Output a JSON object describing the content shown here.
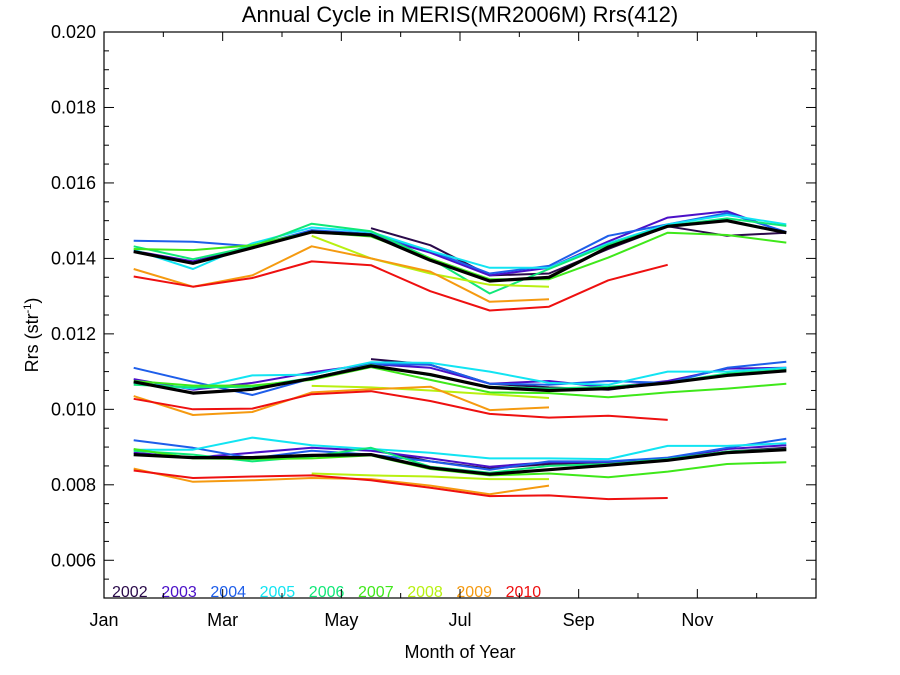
{
  "chart_data": {
    "type": "line",
    "title": "Annual Cycle in MERIS(MR2006M) Rrs(412)",
    "xlabel": "Month of Year",
    "ylabel": "Rrs (str",
    "ylabel_sup": "-1",
    "ylabel_end": ")",
    "xlim": [
      1,
      13
    ],
    "ylim": [
      0.005,
      0.02
    ],
    "x_ticks": [
      {
        "label": "Jan",
        "value": 1
      },
      {
        "label": "Mar",
        "value": 3
      },
      {
        "label": "May",
        "value": 5
      },
      {
        "label": "Jul",
        "value": 7
      },
      {
        "label": "Sep",
        "value": 9
      },
      {
        "label": "Nov",
        "value": 11
      }
    ],
    "y_ticks": [
      {
        "label": "0.006",
        "value": 0.006
      },
      {
        "label": "0.008",
        "value": 0.008
      },
      {
        "label": "0.010",
        "value": 0.01
      },
      {
        "label": "0.012",
        "value": 0.012
      },
      {
        "label": "0.014",
        "value": 0.014
      },
      {
        "label": "0.016",
        "value": 0.016
      },
      {
        "label": "0.018",
        "value": 0.018
      },
      {
        "label": "0.020",
        "value": 0.02
      }
    ],
    "grid": false,
    "legend_position": "bottom-left",
    "legend": [
      {
        "name": "2002",
        "color": "#2a0a4a"
      },
      {
        "name": "2003",
        "color": "#4b10c8"
      },
      {
        "name": "2004",
        "color": "#1e5eea"
      },
      {
        "name": "2005",
        "color": "#12e4f2"
      },
      {
        "name": "2006",
        "color": "#10e878"
      },
      {
        "name": "2007",
        "color": "#3fe81a"
      },
      {
        "name": "2008",
        "color": "#b8f010"
      },
      {
        "name": "2009",
        "color": "#f59a10"
      },
      {
        "name": "2010",
        "color": "#ee1010"
      }
    ],
    "climatology_color": "#000000",
    "groups": [
      {
        "name": "upper",
        "climatology": {
          "x": [
            1.5,
            2.5,
            3.5,
            4.5,
            5.5,
            6.5,
            7.5,
            8.5,
            9.5,
            10.5,
            11.5,
            12.5
          ],
          "y": [
            0.01418,
            0.01387,
            0.01428,
            0.0147,
            0.01462,
            0.01395,
            0.0134,
            0.0135,
            0.0143,
            0.01485,
            0.015,
            0.01468
          ]
        },
        "series": [
          {
            "name": "2002",
            "x": [
              5.5,
              6.5,
              7.5,
              8.5,
              9.5,
              10.5,
              11.5,
              12.5
            ],
            "y": [
              0.0148,
              0.01435,
              0.01355,
              0.0136,
              0.01425,
              0.01485,
              0.0146,
              0.01468
            ]
          },
          {
            "name": "2003",
            "x": [
              1.5,
              2.5,
              3.5,
              4.5,
              5.5,
              6.5,
              7.5,
              8.5,
              9.5,
              10.5,
              11.5,
              12.5
            ],
            "y": [
              0.0142,
              0.01392,
              0.0143,
              0.0147,
              0.0146,
              0.01415,
              0.01355,
              0.01375,
              0.01445,
              0.01508,
              0.01525,
              0.01468
            ]
          },
          {
            "name": "2004",
            "x": [
              1.5,
              2.5,
              3.5,
              4.5,
              5.5,
              6.5,
              7.5,
              8.5,
              9.5,
              10.5,
              11.5,
              12.5
            ],
            "y": [
              0.01447,
              0.01444,
              0.01432,
              0.01475,
              0.01465,
              0.0142,
              0.0136,
              0.0138,
              0.0146,
              0.0149,
              0.0152,
              0.0147
            ]
          },
          {
            "name": "2005",
            "x": [
              1.5,
              2.5,
              3.5,
              4.5,
              5.5,
              6.5,
              7.5,
              8.5,
              9.5,
              10.5,
              11.5,
              12.5
            ],
            "y": [
              0.01423,
              0.01372,
              0.0144,
              0.01482,
              0.0147,
              0.0142,
              0.01375,
              0.01375,
              0.0144,
              0.0149,
              0.01515,
              0.0149
            ]
          },
          {
            "name": "2006",
            "x": [
              1.5,
              2.5,
              3.5,
              4.5,
              5.5,
              6.5,
              7.5,
              8.5,
              9.5,
              10.5,
              11.5,
              12.5
            ],
            "y": [
              0.01432,
              0.01398,
              0.01432,
              0.01492,
              0.01472,
              0.014,
              0.01307,
              0.01372,
              0.01436,
              0.01486,
              0.01506,
              0.01486
            ]
          },
          {
            "name": "2007",
            "x": [
              1.5,
              2.5,
              3.5,
              4.5,
              5.5,
              6.5,
              7.5,
              8.5,
              9.5,
              10.5,
              11.5,
              12.5
            ],
            "y": [
              0.01425,
              0.01422,
              0.01435,
              0.0147,
              0.01458,
              0.014,
              0.01345,
              0.01345,
              0.01402,
              0.01468,
              0.01462,
              0.01442
            ]
          },
          {
            "name": "2008",
            "x": [
              4.5,
              5.5,
              6.5,
              7.5,
              8.5
            ],
            "y": [
              0.0146,
              0.014,
              0.0136,
              0.0133,
              0.01325
            ]
          },
          {
            "name": "2009",
            "x": [
              1.5,
              2.5,
              3.5,
              4.5,
              5.5,
              6.5,
              7.5,
              8.5
            ],
            "y": [
              0.01372,
              0.01325,
              0.01355,
              0.01432,
              0.014,
              0.01365,
              0.01285,
              0.01292
            ]
          },
          {
            "name": "2010",
            "x": [
              1.5,
              2.5,
              3.5,
              4.5,
              5.5,
              6.5,
              7.5,
              8.5,
              9.5,
              10.5
            ],
            "y": [
              0.01352,
              0.01325,
              0.01348,
              0.01392,
              0.01382,
              0.01313,
              0.01262,
              0.01272,
              0.01342,
              0.01383
            ]
          }
        ]
      },
      {
        "name": "middle",
        "climatology": {
          "x": [
            1.5,
            2.5,
            3.5,
            4.5,
            5.5,
            6.5,
            7.5,
            8.5,
            9.5,
            10.5,
            11.5,
            12.5
          ],
          "y": [
            0.01073,
            0.01043,
            0.01053,
            0.01082,
            0.01115,
            0.01092,
            0.01058,
            0.0105,
            0.01055,
            0.0107,
            0.0109,
            0.01102
          ]
        },
        "series": [
          {
            "name": "2002",
            "x": [
              5.5,
              6.5,
              7.5,
              8.5,
              9.5,
              10.5,
              11.5,
              12.5
            ],
            "y": [
              0.01133,
              0.01118,
              0.01068,
              0.01058,
              0.01052,
              0.01072,
              0.0109,
              0.01105
            ]
          },
          {
            "name": "2003",
            "x": [
              1.5,
              2.5,
              3.5,
              4.5,
              5.5,
              6.5,
              7.5,
              8.5,
              9.5,
              10.5,
              11.5,
              12.5
            ],
            "y": [
              0.0108,
              0.01052,
              0.0107,
              0.01098,
              0.0112,
              0.0111,
              0.01068,
              0.01075,
              0.01058,
              0.01075,
              0.01108,
              0.0111
            ]
          },
          {
            "name": "2004",
            "x": [
              1.5,
              2.5,
              3.5,
              4.5,
              5.5,
              6.5,
              7.5,
              8.5,
              9.5,
              10.5,
              11.5,
              12.5
            ],
            "y": [
              0.0111,
              0.01073,
              0.01038,
              0.01082,
              0.0112,
              0.01118,
              0.01068,
              0.01065,
              0.01075,
              0.0107,
              0.0111,
              0.01126
            ]
          },
          {
            "name": "2005",
            "x": [
              1.5,
              2.5,
              3.5,
              4.5,
              5.5,
              6.5,
              7.5,
              8.5,
              9.5,
              10.5,
              11.5,
              12.5
            ],
            "y": [
              0.0107,
              0.01055,
              0.0109,
              0.01092,
              0.01125,
              0.01123,
              0.011,
              0.0107,
              0.01065,
              0.011,
              0.011,
              0.0111
            ]
          },
          {
            "name": "2006",
            "x": [
              1.5,
              2.5,
              3.5,
              4.5,
              5.5,
              6.5,
              7.5,
              8.5,
              9.5,
              10.5,
              11.5,
              12.5
            ],
            "y": [
              0.01065,
              0.01058,
              0.0106,
              0.01083,
              0.01118,
              0.0109,
              0.0106,
              0.01055,
              0.0106,
              0.0107,
              0.01095,
              0.01105
            ]
          },
          {
            "name": "2007",
            "x": [
              1.5,
              2.5,
              3.5,
              4.5,
              5.5,
              6.5,
              7.5,
              8.5,
              9.5,
              10.5,
              11.5,
              12.5
            ],
            "y": [
              0.01075,
              0.01063,
              0.01063,
              0.01078,
              0.01112,
              0.01078,
              0.01045,
              0.01043,
              0.01032,
              0.01045,
              0.01055,
              0.01068
            ]
          },
          {
            "name": "2008",
            "x": [
              4.5,
              5.5,
              6.5,
              7.5,
              8.5
            ],
            "y": [
              0.01062,
              0.01058,
              0.0105,
              0.0104,
              0.0103
            ]
          },
          {
            "name": "2009",
            "x": [
              1.5,
              2.5,
              3.5,
              4.5,
              5.5,
              6.5,
              7.5,
              8.5
            ],
            "y": [
              0.01035,
              0.00985,
              0.00993,
              0.01045,
              0.01053,
              0.0106,
              0.00998,
              0.01005
            ]
          },
          {
            "name": "2010",
            "x": [
              1.5,
              2.5,
              3.5,
              4.5,
              5.5,
              6.5,
              7.5,
              8.5,
              9.5,
              10.5
            ],
            "y": [
              0.01028,
              0.01,
              0.01002,
              0.0104,
              0.01048,
              0.01022,
              0.00988,
              0.00978,
              0.00983,
              0.00972
            ]
          }
        ]
      },
      {
        "name": "lower",
        "climatology": {
          "x": [
            1.5,
            2.5,
            3.5,
            4.5,
            5.5,
            6.5,
            7.5,
            8.5,
            9.5,
            10.5,
            11.5,
            12.5
          ],
          "y": [
            0.0088,
            0.00872,
            0.00872,
            0.00878,
            0.0088,
            0.00845,
            0.00828,
            0.0084,
            0.00852,
            0.00865,
            0.00885,
            0.00893
          ]
        },
        "series": [
          {
            "name": "2002",
            "x": [
              5.5,
              6.5,
              7.5,
              8.5,
              9.5,
              10.5,
              11.5,
              12.5
            ],
            "y": [
              0.00893,
              0.00862,
              0.00843,
              0.00855,
              0.0086,
              0.0087,
              0.00888,
              0.00898
            ]
          },
          {
            "name": "2003",
            "x": [
              1.5,
              2.5,
              3.5,
              4.5,
              5.5,
              6.5,
              7.5,
              8.5,
              9.5,
              10.5,
              11.5,
              12.5
            ],
            "y": [
              0.00885,
              0.00872,
              0.00885,
              0.00898,
              0.0089,
              0.0087,
              0.00848,
              0.0086,
              0.0086,
              0.0087,
              0.00895,
              0.00905
            ]
          },
          {
            "name": "2004",
            "x": [
              1.5,
              2.5,
              3.5,
              4.5,
              5.5,
              6.5,
              7.5,
              8.5,
              9.5,
              10.5,
              11.5,
              12.5
            ],
            "y": [
              0.00918,
              0.00898,
              0.0087,
              0.0089,
              0.0088,
              0.00862,
              0.0084,
              0.00862,
              0.00862,
              0.00872,
              0.00898,
              0.00922
            ]
          },
          {
            "name": "2005",
            "x": [
              1.5,
              2.5,
              3.5,
              4.5,
              5.5,
              6.5,
              7.5,
              8.5,
              9.5,
              10.5,
              11.5,
              12.5
            ],
            "y": [
              0.00893,
              0.00893,
              0.00925,
              0.00905,
              0.00895,
              0.00885,
              0.0087,
              0.0087,
              0.00868,
              0.00903,
              0.00903,
              0.0091
            ]
          },
          {
            "name": "2006",
            "x": [
              1.5,
              2.5,
              3.5,
              4.5,
              5.5,
              6.5,
              7.5,
              8.5,
              9.5,
              10.5,
              11.5,
              12.5
            ],
            "y": [
              0.0089,
              0.0088,
              0.00862,
              0.00875,
              0.00898,
              0.00848,
              0.00832,
              0.0085,
              0.00855,
              0.00868,
              0.00888,
              0.00895
            ]
          },
          {
            "name": "2007",
            "x": [
              1.5,
              2.5,
              3.5,
              4.5,
              5.5,
              6.5,
              7.5,
              8.5,
              9.5,
              10.5,
              11.5,
              12.5
            ],
            "y": [
              0.00895,
              0.0087,
              0.00868,
              0.0087,
              0.00878,
              0.00842,
              0.00825,
              0.0083,
              0.0082,
              0.00835,
              0.00855,
              0.0086
            ]
          },
          {
            "name": "2008",
            "x": [
              4.5,
              5.5,
              6.5,
              7.5,
              8.5
            ],
            "y": [
              0.0083,
              0.00825,
              0.00822,
              0.00815,
              0.00815
            ]
          },
          {
            "name": "2009",
            "x": [
              1.5,
              2.5,
              3.5,
              4.5,
              5.5,
              6.5,
              7.5,
              8.5
            ],
            "y": [
              0.00843,
              0.00808,
              0.00812,
              0.00818,
              0.00815,
              0.00798,
              0.00775,
              0.00798
            ]
          },
          {
            "name": "2010",
            "x": [
              1.5,
              2.5,
              3.5,
              4.5,
              5.5,
              6.5,
              7.5,
              8.5,
              9.5,
              10.5
            ],
            "y": [
              0.00838,
              0.00818,
              0.00822,
              0.00825,
              0.00812,
              0.00792,
              0.0077,
              0.00772,
              0.00762,
              0.00765
            ]
          }
        ]
      }
    ]
  }
}
